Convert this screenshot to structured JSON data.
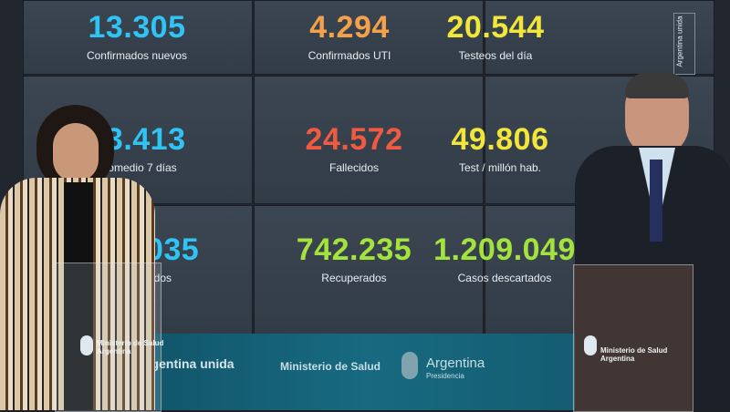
{
  "stats": [
    {
      "value": "13.305",
      "label": "Confirmados nuevos",
      "color": "#2fc4f4"
    },
    {
      "value": "4.294",
      "label": "Confirmados UTI",
      "color": "#f4a24a"
    },
    {
      "value": "20.544",
      "label": "Testeos del día",
      "color": "#f2e63a"
    },
    {
      "value": "13.413",
      "label": "Promedio 7 días",
      "color": "#2fc4f4"
    },
    {
      "value": "24.572",
      "label": "Fallecidos",
      "color": "#f05a40"
    },
    {
      "value": "49.806",
      "label": "Test / millón hab.",
      "color": "#f2e63a"
    },
    {
      "value": "717.035",
      "label": "Acumulados",
      "color": "#2fc4f4"
    },
    {
      "value": "742.235",
      "label": "Recuperados",
      "color": "#a4e23e"
    },
    {
      "value": "1.209.049",
      "label": "Casos descartados",
      "color": "#a4e23e"
    }
  ],
  "band": {
    "campaign": "Argentina unida",
    "ministry": "Ministerio de Salud",
    "country": "Argentina",
    "presidency": "Presidencia"
  },
  "side_label": "Argentina unida",
  "podium_left": {
    "line1": "Ministerio de Salud",
    "line2": "Argentina"
  },
  "podium_right": {
    "line1": "Ministerio de Salud",
    "line2": "Argentina"
  }
}
